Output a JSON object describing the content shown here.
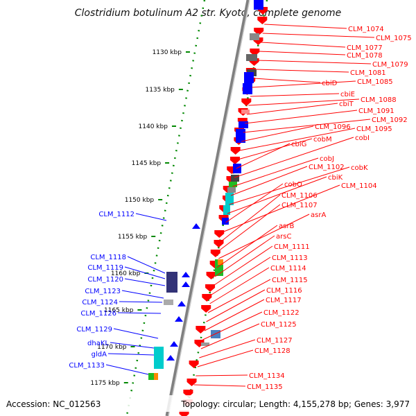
{
  "title": "Clostridium botulinum A2 str. Kyoto, complete genome",
  "footer": {
    "accession": "Accession: NC_012563",
    "info": "Topology: circular; Length: 4,155,278 bp; Genes: 3,977"
  },
  "colors": {
    "forward": "#ff0000",
    "reverse": "#0000ff",
    "navy": "#333377",
    "cyan": "#00cccc",
    "green": "#22bb22",
    "orange": "#ff8800",
    "gray": "#999999",
    "tick": "#008800",
    "backbone": "#808080"
  },
  "ticks": [
    "1130 kbp",
    "1135 kbp",
    "1140 kbp",
    "1145 kbp",
    "1150 kbp",
    "1155 kbp",
    "1160 kbp",
    "1165 kbp",
    "1170 kbp",
    "1175 kbp"
  ],
  "right_labels": [
    "CLM_1074",
    "CLM_1075",
    "CLM_1077",
    "CLM_1078",
    "CLM_1079",
    "CLM_1081",
    "cbiD",
    "CLM_1085",
    "cbiE",
    "CLM_1088",
    "cbiT",
    "CLM_1091",
    "CLM_1092",
    "CLM_1096",
    "CLM_1095",
    "cobM",
    "cbiG",
    "cobI",
    "cobJ",
    "CLM_1102",
    "cobK",
    "cbiK",
    "cobO",
    "CLM_1104",
    "CLM_1106",
    "CLM_1107",
    "asrA",
    "asrB",
    "arsC",
    "CLM_1111",
    "CLM_1113",
    "CLM_1114",
    "CLM_1115",
    "CLM_1116",
    "CLM_1117",
    "CLM_1122",
    "CLM_1125",
    "CLM_1127",
    "CLM_1128",
    "CLM_1134",
    "CLM_1135"
  ],
  "left_labels": [
    "CLM_1112",
    "CLM_1118",
    "CLM_1119",
    "CLM_1120",
    "CLM_1123",
    "CLM_1124",
    "CLM_1126",
    "CLM_1129",
    "dhaKL",
    "gldA",
    "CLM_1133"
  ]
}
